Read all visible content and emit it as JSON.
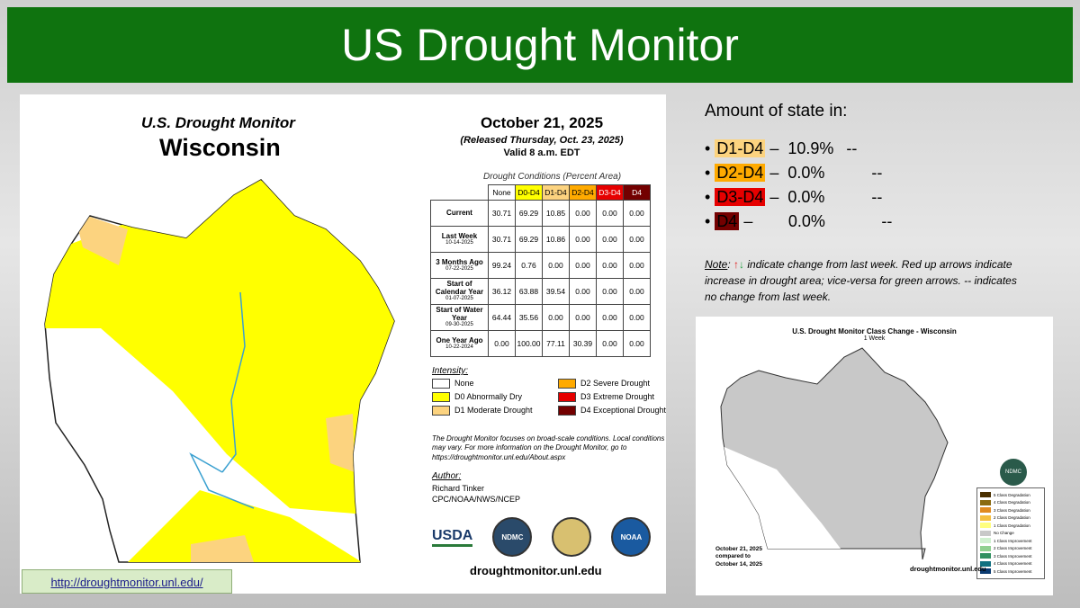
{
  "header": {
    "title": "US Drought Monitor"
  },
  "map": {
    "title": "U.S. Drought Monitor",
    "state": "Wisconsin",
    "date": "October 21, 2025",
    "released": "(Released Thursday, Oct. 23, 2025)",
    "valid": "Valid 8 a.m. EDT",
    "table_caption": "Drought Conditions (Percent Area)",
    "columns": [
      "None",
      "D0-D4",
      "D1-D4",
      "D2-D4",
      "D3-D4",
      "D4"
    ],
    "column_colors": [
      "#ffffff",
      "#ffff00",
      "#fcd37f",
      "#ffaa00",
      "#e60000",
      "#730000"
    ],
    "rows": [
      {
        "label": "Current",
        "date": "",
        "values": [
          "30.71",
          "69.29",
          "10.85",
          "0.00",
          "0.00",
          "0.00"
        ]
      },
      {
        "label": "Last Week",
        "date": "10-14-2025",
        "values": [
          "30.71",
          "69.29",
          "10.86",
          "0.00",
          "0.00",
          "0.00"
        ]
      },
      {
        "label": "3 Months Ago",
        "date": "07-22-2025",
        "values": [
          "99.24",
          "0.76",
          "0.00",
          "0.00",
          "0.00",
          "0.00"
        ]
      },
      {
        "label": "Start of Calendar Year",
        "date": "01-07-2025",
        "values": [
          "36.12",
          "63.88",
          "39.54",
          "0.00",
          "0.00",
          "0.00"
        ]
      },
      {
        "label": "Start of Water Year",
        "date": "09-30-2025",
        "values": [
          "64.44",
          "35.56",
          "0.00",
          "0.00",
          "0.00",
          "0.00"
        ]
      },
      {
        "label": "One Year Ago",
        "date": "10-22-2024",
        "values": [
          "0.00",
          "100.00",
          "77.11",
          "30.39",
          "0.00",
          "0.00"
        ]
      }
    ],
    "intensity_title": "Intensity:",
    "legend": [
      {
        "label": "None",
        "color": "#ffffff"
      },
      {
        "label": "D2 Severe Drought",
        "color": "#ffaa00"
      },
      {
        "label": "D0 Abnormally Dry",
        "color": "#ffff00"
      },
      {
        "label": "D3 Extreme Drought",
        "color": "#e60000"
      },
      {
        "label": "D1 Moderate Drought",
        "color": "#fcd37f"
      },
      {
        "label": "D4 Exceptional Drought",
        "color": "#730000"
      }
    ],
    "disclaimer": "The Drought Monitor focuses on broad-scale conditions. Local conditions may vary. For more information on the Drought Monitor, go to https://droughtmonitor.unl.edu/About.aspx",
    "author_title": "Author:",
    "author": "Richard Tinker",
    "author_org": "CPC/NOAA/NWS/NCEP",
    "logos": [
      "USDA",
      "NDMC",
      "NOAA"
    ],
    "site": "droughtmonitor.unl.edu"
  },
  "link": "http://droughtmonitor.unl.edu/",
  "summary": {
    "title": "Amount of state in:",
    "items": [
      {
        "label": "D1-D4",
        "sep": " –  ",
        "value": "10.9%",
        "change": "--",
        "color": "#fcd37f"
      },
      {
        "label": "D2-D4",
        "sep": " –  ",
        "value": "0.0%",
        "change": "--",
        "color": "#ffaa00"
      },
      {
        "label": "D3-D4",
        "sep": " –  ",
        "value": "0.0%",
        "change": "--",
        "color": "#e60000"
      },
      {
        "label": "D4",
        "sep": " –  ",
        "value": "0.0%",
        "change": "--",
        "color": "#730000"
      }
    ],
    "note_label": "Note",
    "note_up": "↑",
    "note_down": "↓",
    "note_text": " indicate change from last week. Red up arrows indicate increase in drought area; vice-versa for green arrows. -- indicates no change from last week."
  },
  "class_change": {
    "title": "U.S. Drought Monitor Class Change - Wisconsin",
    "subtitle": "1 Week",
    "dates": "October 21, 2025\ncompared to\nOctober 14, 2025",
    "site": "droughtmonitor.unl.edu",
    "logo": "NDMC",
    "legend": [
      {
        "label": "5 Class Degradation",
        "color": "#4a3000"
      },
      {
        "label": "4 Class Degradation",
        "color": "#8a6a10"
      },
      {
        "label": "3 Class Degradation",
        "color": "#e08a20"
      },
      {
        "label": "2 Class Degradation",
        "color": "#f5c040"
      },
      {
        "label": "1 Class Degradation",
        "color": "#ffff80"
      },
      {
        "label": "No Change",
        "color": "#c8c8c8"
      },
      {
        "label": "1 Class Improvement",
        "color": "#d0f0d0"
      },
      {
        "label": "2 Class Improvement",
        "color": "#90d090"
      },
      {
        "label": "3 Class Improvement",
        "color": "#309060"
      },
      {
        "label": "4 Class Improvement",
        "color": "#107080"
      },
      {
        "label": "5 Class Improvement",
        "color": "#0a3a70"
      }
    ]
  }
}
